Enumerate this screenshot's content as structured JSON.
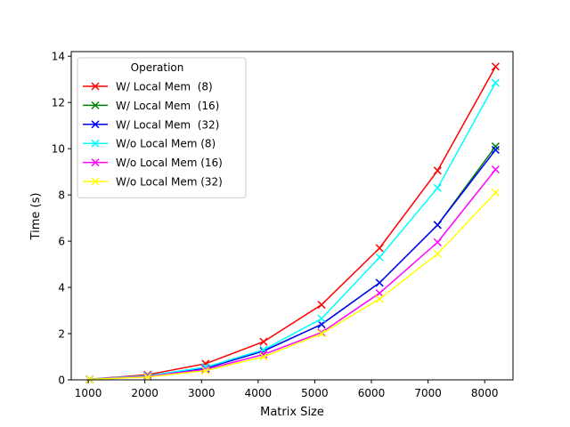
{
  "chart_data": {
    "type": "line",
    "title": "",
    "xlabel": "Matrix Size",
    "ylabel": "Time (s)",
    "xlim": [
      700,
      8500
    ],
    "ylim": [
      0,
      14.2
    ],
    "xticks": [
      1000,
      2000,
      3000,
      4000,
      5000,
      6000,
      7000,
      8000
    ],
    "yticks": [
      0,
      2,
      4,
      6,
      8,
      10,
      12,
      14
    ],
    "grid": false,
    "marker": "x",
    "legend": {
      "title": "Operation",
      "position": "top-left"
    },
    "x": [
      1024,
      2048,
      3072,
      4096,
      5120,
      6144,
      7168,
      8192
    ],
    "series": [
      {
        "name": "W/ Local Mem  (8)",
        "color": "#ff0000",
        "values": [
          0.03,
          0.22,
          0.7,
          1.65,
          3.25,
          5.7,
          9.05,
          13.55
        ]
      },
      {
        "name": "W/ Local Mem  (16)",
        "color": "#008000",
        "values": [
          0.02,
          0.17,
          0.5,
          1.25,
          2.4,
          4.2,
          6.7,
          10.1
        ]
      },
      {
        "name": "W/ Local Mem  (32)",
        "color": "#0000ff",
        "values": [
          0.02,
          0.17,
          0.5,
          1.25,
          2.4,
          4.2,
          6.7,
          9.95
        ]
      },
      {
        "name": "W/o Local Mem (8)",
        "color": "#00ffff",
        "values": [
          0.03,
          0.18,
          0.55,
          1.3,
          2.65,
          5.3,
          8.3,
          12.85
        ]
      },
      {
        "name": "W/o Local Mem (16)",
        "color": "#ff00ff",
        "values": [
          0.02,
          0.15,
          0.45,
          1.1,
          2.05,
          3.75,
          5.95,
          9.1
        ]
      },
      {
        "name": "W/o Local Mem (32)",
        "color": "#ffff00",
        "values": [
          0.02,
          0.12,
          0.4,
          1.0,
          2.0,
          3.5,
          5.45,
          8.1
        ]
      }
    ]
  }
}
